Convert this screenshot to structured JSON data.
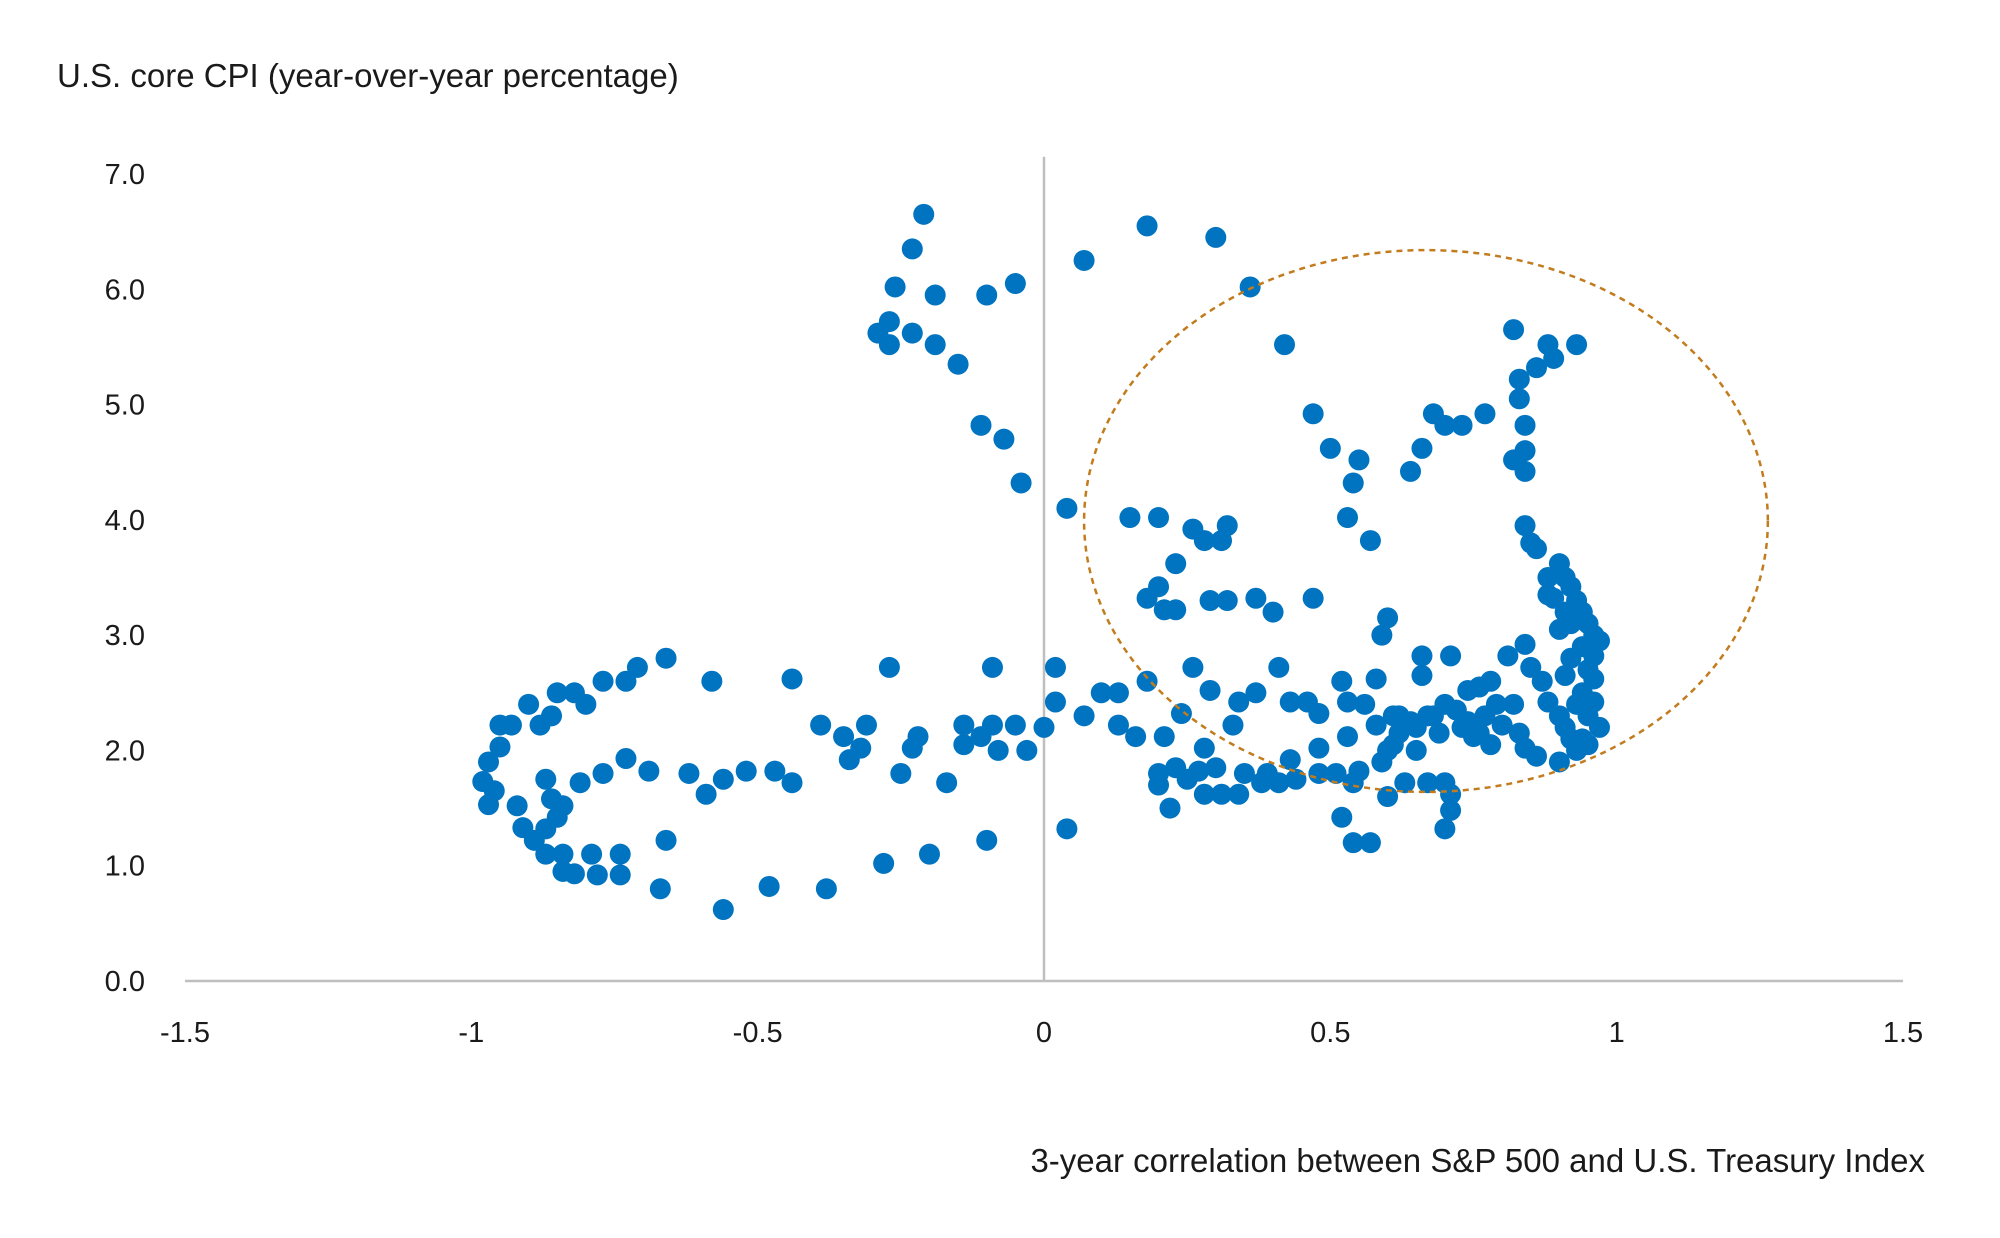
{
  "chart_data": {
    "type": "scatter",
    "ylabel": "U.S. core CPI (year-over-year percentage)",
    "xlabel": "3-year correlation between S&P 500 and U.S. Treasury Index",
    "xlim": [
      -1.5,
      1.5
    ],
    "ylim": [
      0,
      7
    ],
    "xticks": [
      "-1.5",
      "-1",
      "-0.5",
      "0",
      "0.5",
      "1",
      "1.5"
    ],
    "xtick_values": [
      -1.5,
      -1,
      -0.5,
      0,
      0.5,
      1,
      1.5
    ],
    "yticks": [
      "0.0",
      "1.0",
      "2.0",
      "3.0",
      "4.0",
      "5.0",
      "6.0",
      "7.0"
    ],
    "ytick_values": [
      0,
      1,
      2,
      3,
      4,
      5,
      6,
      7
    ],
    "grid": false,
    "colors": {
      "points": "#0074c1",
      "annotation": "#c27c1e",
      "axis": "#bfbfbf"
    },
    "annotation_ellipse": {
      "cx": 0.667,
      "cy": 3.99,
      "rx": 0.597,
      "ry": 2.35,
      "style": "dashed"
    },
    "points": [
      [
        -0.98,
        1.73
      ],
      [
        -0.97,
        1.53
      ],
      [
        -0.96,
        1.65
      ],
      [
        -0.97,
        1.9
      ],
      [
        -0.95,
        2.03
      ],
      [
        -0.95,
        2.22
      ],
      [
        -0.93,
        2.22
      ],
      [
        -0.92,
        1.52
      ],
      [
        -0.91,
        1.33
      ],
      [
        -0.9,
        2.4
      ],
      [
        -0.89,
        1.22
      ],
      [
        -0.88,
        2.22
      ],
      [
        -0.87,
        1.75
      ],
      [
        -0.87,
        1.32
      ],
      [
        -0.87,
        1.1
      ],
      [
        -0.86,
        1.58
      ],
      [
        -0.86,
        2.3
      ],
      [
        -0.85,
        1.42
      ],
      [
        -0.85,
        2.5
      ],
      [
        -0.84,
        0.95
      ],
      [
        -0.84,
        1.1
      ],
      [
        -0.84,
        1.52
      ],
      [
        -0.82,
        0.93
      ],
      [
        -0.82,
        2.5
      ],
      [
        -0.81,
        1.72
      ],
      [
        -0.8,
        2.4
      ],
      [
        -0.79,
        1.1
      ],
      [
        -0.78,
        0.92
      ],
      [
        -0.77,
        2.6
      ],
      [
        -0.77,
        1.8
      ],
      [
        -0.74,
        1.1
      ],
      [
        -0.74,
        0.92
      ],
      [
        -0.73,
        1.93
      ],
      [
        -0.73,
        2.6
      ],
      [
        -0.71,
        2.72
      ],
      [
        -0.69,
        1.82
      ],
      [
        -0.66,
        2.8
      ],
      [
        -0.66,
        1.22
      ],
      [
        -0.67,
        0.8
      ],
      [
        -0.62,
        1.8
      ],
      [
        -0.59,
        1.62
      ],
      [
        -0.58,
        2.6
      ],
      [
        -0.56,
        1.75
      ],
      [
        -0.56,
        0.62
      ],
      [
        -0.52,
        1.82
      ],
      [
        -0.48,
        0.82
      ],
      [
        -0.47,
        1.82
      ],
      [
        -0.44,
        2.62
      ],
      [
        -0.44,
        1.72
      ],
      [
        -0.39,
        2.22
      ],
      [
        -0.38,
        0.8
      ],
      [
        -0.35,
        2.12
      ],
      [
        -0.34,
        1.92
      ],
      [
        -0.32,
        2.02
      ],
      [
        -0.31,
        2.22
      ],
      [
        -0.28,
        1.02
      ],
      [
        -0.27,
        2.72
      ],
      [
        -0.25,
        1.8
      ],
      [
        -0.23,
        2.02
      ],
      [
        -0.22,
        2.12
      ],
      [
        -0.2,
        1.1
      ],
      [
        -0.17,
        1.72
      ],
      [
        -0.14,
        2.22
      ],
      [
        -0.14,
        2.05
      ],
      [
        -0.11,
        2.12
      ],
      [
        -0.1,
        1.22
      ],
      [
        -0.09,
        2.22
      ],
      [
        -0.09,
        2.72
      ],
      [
        -0.08,
        2.0
      ],
      [
        -0.05,
        2.22
      ],
      [
        -0.03,
        2.0
      ],
      [
        -0.29,
        5.62
      ],
      [
        -0.27,
        5.72
      ],
      [
        -0.27,
        5.52
      ],
      [
        -0.26,
        6.02
      ],
      [
        -0.23,
        5.62
      ],
      [
        -0.23,
        6.35
      ],
      [
        -0.21,
        6.65
      ],
      [
        -0.19,
        5.95
      ],
      [
        -0.19,
        5.52
      ],
      [
        -0.15,
        5.35
      ],
      [
        -0.11,
        4.82
      ],
      [
        -0.1,
        5.95
      ],
      [
        -0.07,
        4.7
      ],
      [
        -0.05,
        6.05
      ],
      [
        -0.04,
        4.32
      ],
      [
        0.04,
        4.1
      ],
      [
        0.07,
        6.25
      ],
      [
        0.18,
        6.55
      ],
      [
        0.3,
        6.45
      ],
      [
        0.36,
        6.02
      ],
      [
        0.42,
        5.52
      ],
      [
        0.02,
        2.72
      ],
      [
        0.02,
        2.42
      ],
      [
        0.0,
        2.2
      ],
      [
        0.04,
        1.32
      ],
      [
        0.07,
        2.3
      ],
      [
        0.1,
        2.5
      ],
      [
        0.13,
        2.22
      ],
      [
        0.13,
        2.5
      ],
      [
        0.15,
        4.02
      ],
      [
        0.16,
        2.12
      ],
      [
        0.18,
        2.6
      ],
      [
        0.18,
        3.32
      ],
      [
        0.2,
        3.42
      ],
      [
        0.2,
        4.02
      ],
      [
        0.2,
        1.8
      ],
      [
        0.2,
        1.7
      ],
      [
        0.21,
        2.12
      ],
      [
        0.21,
        3.22
      ],
      [
        0.22,
        1.5
      ],
      [
        0.23,
        1.85
      ],
      [
        0.23,
        3.22
      ],
      [
        0.23,
        3.62
      ],
      [
        0.24,
        2.32
      ],
      [
        0.25,
        1.75
      ],
      [
        0.26,
        3.92
      ],
      [
        0.26,
        2.72
      ],
      [
        0.27,
        1.82
      ],
      [
        0.28,
        3.82
      ],
      [
        0.28,
        2.02
      ],
      [
        0.28,
        1.62
      ],
      [
        0.29,
        2.52
      ],
      [
        0.29,
        3.3
      ],
      [
        0.3,
        1.85
      ],
      [
        0.31,
        3.82
      ],
      [
        0.31,
        1.62
      ],
      [
        0.32,
        3.95
      ],
      [
        0.32,
        3.3
      ],
      [
        0.33,
        2.22
      ],
      [
        0.34,
        2.42
      ],
      [
        0.34,
        1.62
      ],
      [
        0.35,
        1.8
      ],
      [
        0.37,
        3.32
      ],
      [
        0.37,
        2.5
      ],
      [
        0.38,
        1.72
      ],
      [
        0.39,
        1.8
      ],
      [
        0.4,
        3.2
      ],
      [
        0.41,
        2.72
      ],
      [
        0.41,
        1.72
      ],
      [
        0.43,
        2.42
      ],
      [
        0.43,
        1.92
      ],
      [
        0.44,
        1.75
      ],
      [
        0.46,
        2.42
      ],
      [
        0.47,
        3.32
      ],
      [
        0.47,
        4.92
      ],
      [
        0.48,
        2.32
      ],
      [
        0.48,
        1.8
      ],
      [
        0.48,
        2.02
      ],
      [
        0.5,
        4.62
      ],
      [
        0.51,
        1.8
      ],
      [
        0.52,
        1.42
      ],
      [
        0.52,
        2.6
      ],
      [
        0.53,
        4.02
      ],
      [
        0.53,
        2.42
      ],
      [
        0.53,
        2.12
      ],
      [
        0.54,
        4.32
      ],
      [
        0.54,
        1.72
      ],
      [
        0.54,
        1.2
      ],
      [
        0.55,
        4.52
      ],
      [
        0.55,
        1.82
      ],
      [
        0.56,
        2.4
      ],
      [
        0.57,
        1.2
      ],
      [
        0.57,
        3.82
      ],
      [
        0.58,
        2.22
      ],
      [
        0.58,
        2.62
      ],
      [
        0.59,
        3.0
      ],
      [
        0.59,
        1.9
      ],
      [
        0.6,
        3.15
      ],
      [
        0.6,
        1.6
      ],
      [
        0.61,
        2.3
      ],
      [
        0.61,
        2.05
      ],
      [
        0.62,
        2.15
      ],
      [
        0.63,
        1.72
      ],
      [
        0.64,
        4.42
      ],
      [
        0.64,
        2.25
      ],
      [
        0.65,
        2.0
      ],
      [
        0.66,
        4.62
      ],
      [
        0.66,
        2.65
      ],
      [
        0.66,
        2.82
      ],
      [
        0.67,
        1.72
      ],
      [
        0.68,
        4.92
      ],
      [
        0.68,
        2.3
      ],
      [
        0.69,
        2.15
      ],
      [
        0.7,
        4.82
      ],
      [
        0.7,
        1.72
      ],
      [
        0.7,
        1.32
      ],
      [
        0.7,
        2.4
      ],
      [
        0.71,
        2.82
      ],
      [
        0.71,
        1.62
      ],
      [
        0.71,
        1.48
      ],
      [
        0.73,
        4.82
      ],
      [
        0.73,
        2.2
      ],
      [
        0.74,
        2.52
      ],
      [
        0.75,
        2.12
      ],
      [
        0.76,
        2.55
      ],
      [
        0.77,
        4.92
      ],
      [
        0.77,
        2.3
      ],
      [
        0.78,
        2.6
      ],
      [
        0.78,
        2.05
      ],
      [
        0.79,
        2.4
      ],
      [
        0.8,
        2.22
      ],
      [
        0.81,
        2.82
      ],
      [
        0.82,
        2.4
      ],
      [
        0.82,
        5.65
      ],
      [
        0.82,
        4.52
      ],
      [
        0.83,
        5.22
      ],
      [
        0.83,
        5.05
      ],
      [
        0.83,
        2.15
      ],
      [
        0.84,
        4.82
      ],
      [
        0.84,
        4.6
      ],
      [
        0.84,
        4.42
      ],
      [
        0.84,
        3.95
      ],
      [
        0.84,
        2.92
      ],
      [
        0.84,
        2.02
      ],
      [
        0.85,
        3.8
      ],
      [
        0.85,
        2.72
      ],
      [
        0.86,
        5.32
      ],
      [
        0.86,
        3.75
      ],
      [
        0.86,
        1.95
      ],
      [
        0.87,
        2.6
      ],
      [
        0.88,
        5.52
      ],
      [
        0.88,
        3.5
      ],
      [
        0.88,
        3.35
      ],
      [
        0.88,
        2.42
      ],
      [
        0.89,
        5.4
      ],
      [
        0.9,
        3.62
      ],
      [
        0.9,
        2.3
      ],
      [
        0.9,
        1.9
      ],
      [
        0.91,
        3.5
      ],
      [
        0.91,
        3.2
      ],
      [
        0.91,
        2.2
      ],
      [
        0.92,
        3.42
      ],
      [
        0.92,
        3.1
      ],
      [
        0.92,
        2.1
      ],
      [
        0.93,
        5.52
      ],
      [
        0.93,
        3.3
      ],
      [
        0.93,
        2.0
      ],
      [
        0.94,
        3.2
      ],
      [
        0.94,
        2.9
      ],
      [
        0.94,
        2.5
      ],
      [
        0.95,
        3.1
      ],
      [
        0.95,
        2.7
      ],
      [
        0.95,
        2.3
      ],
      [
        0.96,
        3.0
      ],
      [
        0.96,
        2.82
      ],
      [
        0.96,
        2.62
      ],
      [
        0.96,
        2.42
      ],
      [
        0.97,
        2.2
      ],
      [
        0.97,
        2.95
      ],
      [
        0.91,
        2.65
      ],
      [
        0.92,
        2.8
      ],
      [
        0.93,
        2.4
      ],
      [
        0.89,
        3.32
      ],
      [
        0.9,
        3.05
      ],
      [
        0.94,
        2.1
      ],
      [
        0.95,
        2.05
      ],
      [
        0.6,
        2.0
      ],
      [
        0.62,
        2.3
      ],
      [
        0.65,
        2.2
      ],
      [
        0.67,
        2.3
      ],
      [
        0.72,
        2.35
      ],
      [
        0.74,
        2.25
      ],
      [
        0.76,
        2.15
      ]
    ]
  }
}
